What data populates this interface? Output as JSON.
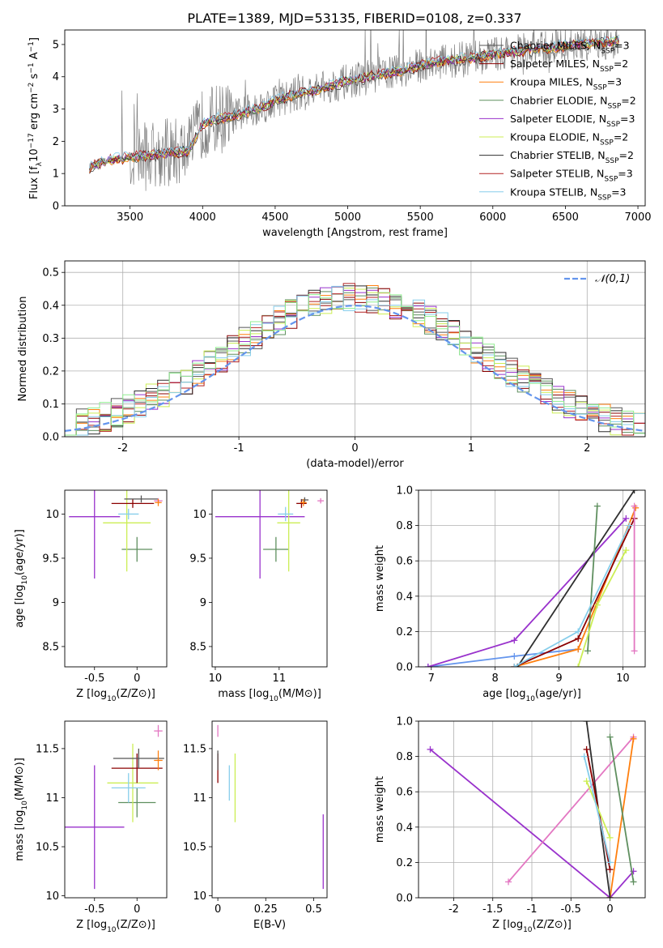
{
  "figure_title": "PLATE=1389, MJD=53135, FIBERID=0108, z=0.337",
  "legend_colors": [
    "#555555",
    "#8b0000",
    "#ff7f0e",
    "#5f8f5f",
    "#9932cc",
    "#ccee55",
    "#2f2f2f",
    "#b22222",
    "#87ceeb"
  ],
  "chart_data": [
    {
      "id": "spectrum",
      "type": "line",
      "xlabel": "wavelength [Angstrom, rest frame]",
      "ylabel": "Flux [f_λ 10^-17 erg cm^-2 s^-1 A^-1]",
      "xlim": [
        3050,
        7050
      ],
      "ylim": [
        0,
        5.45
      ],
      "xticks": [
        3500,
        4000,
        4500,
        5000,
        5500,
        6000,
        6500,
        7000
      ],
      "yticks": [
        0,
        1,
        2,
        3,
        4,
        5
      ],
      "x_range": [
        3220,
        6870
      ],
      "model_envelope": {
        "x": [
          3220,
          3300,
          3400,
          3500,
          3600,
          3700,
          3800,
          3900,
          4000,
          4100,
          4200,
          4300,
          4400,
          4500,
          4600,
          4700,
          4800,
          4900,
          5000,
          5100,
          5200,
          5300,
          5400,
          5500,
          5600,
          5700,
          5800,
          5900,
          6000,
          6100,
          6200,
          6300,
          6400,
          6500,
          6600,
          6700,
          6870
        ],
        "y": [
          1.2,
          1.35,
          1.45,
          1.5,
          1.55,
          1.6,
          1.65,
          1.7,
          2.55,
          2.7,
          2.75,
          2.9,
          3.05,
          3.25,
          3.4,
          3.5,
          3.6,
          3.75,
          3.85,
          3.95,
          4.05,
          4.15,
          4.2,
          4.35,
          4.45,
          4.5,
          4.55,
          4.6,
          4.7,
          4.75,
          4.8,
          4.85,
          4.9,
          4.95,
          5.0,
          5.05,
          5.1
        ]
      },
      "series": [
        {
          "name": "Chabrier MILES, N_SSP=3",
          "color": "#555555"
        },
        {
          "name": "Salpeter MILES, N_SSP=2",
          "color": "#8b0000"
        },
        {
          "name": "Kroupa MILES, N_SSP=3",
          "color": "#ff7f0e"
        },
        {
          "name": "Chabrier ELODIE, N_SSP=2",
          "color": "#5f8f5f"
        },
        {
          "name": "Salpeter ELODIE, N_SSP=3",
          "color": "#9932cc"
        },
        {
          "name": "Kroupa ELODIE, N_SSP=2",
          "color": "#ccee55"
        },
        {
          "name": "Chabrier STELIB, N_SSP=2",
          "color": "#2f2f2f"
        },
        {
          "name": "Salpeter STELIB, N_SSP=3",
          "color": "#b22222"
        },
        {
          "name": "Kroupa STELIB, N_SSP=3",
          "color": "#87ceeb"
        }
      ],
      "data_color": "#808080"
    },
    {
      "id": "residuals",
      "type": "line",
      "xlabel": "(data-model)/error",
      "ylabel": "Normed distribution",
      "xlim": [
        -2.5,
        2.5
      ],
      "ylim": [
        0,
        0.535
      ],
      "xticks": [
        -2,
        -1,
        0,
        1,
        2
      ],
      "yticks": [
        0.0,
        0.1,
        0.2,
        0.3,
        0.4,
        0.5
      ],
      "grid": true,
      "legend": "top-right",
      "gaussian": {
        "name": "𝒩(0,1)",
        "color": "#6495ed",
        "mean": 0,
        "sigma": 1
      },
      "hist_bins": {
        "start": -2.5,
        "width": 0.1,
        "count": 50
      },
      "hist_colors": [
        "#555555",
        "#8b0000",
        "#ff7f0e",
        "#5f8f5f",
        "#9932cc",
        "#ccee55",
        "#2f2f2f",
        "#b22222",
        "#87ceeb",
        "#90ee90"
      ]
    },
    {
      "id": "age_vs_Z",
      "type": "scatter",
      "xlabel": "Z [log10(Z/Z⊙)]",
      "ylabel": "age  [log10(age/yr)]",
      "xlim": [
        -0.85,
        0.35
      ],
      "ylim": [
        8.27,
        10.27
      ],
      "xticks": [
        -0.5,
        0.0
      ],
      "yticks": [
        8.5,
        9.0,
        9.5,
        10.0
      ],
      "points": [
        {
          "x": -0.5,
          "y": 9.97,
          "xerr": 0.3,
          "yerr": 0.7,
          "color": "#9932cc"
        },
        {
          "x": 0.0,
          "y": 9.6,
          "xerr": 0.18,
          "yerr": 0.14,
          "color": "#5f8f5f"
        },
        {
          "x": -0.12,
          "y": 9.9,
          "xerr": 0.28,
          "yerr": 0.55,
          "color": "#ccee55"
        },
        {
          "x": -0.05,
          "y": 10.12,
          "xerr": 0.25,
          "yerr": 0.05,
          "color": "#8b0000"
        },
        {
          "x": 0.05,
          "y": 10.17,
          "xerr": 0.2,
          "yerr": 0.04,
          "color": "#555555"
        },
        {
          "x": -0.1,
          "y": 10.0,
          "xerr": 0.12,
          "yerr": 0.06,
          "color": "#87ceeb"
        },
        {
          "x": 0.25,
          "y": 10.15,
          "xerr": 0.05,
          "yerr": 0.03,
          "color": "#e377c2"
        },
        {
          "x": 0.25,
          "y": 10.13,
          "xerr": 0.04,
          "yerr": 0.04,
          "color": "#ff7f0e"
        }
      ]
    },
    {
      "id": "age_vs_mass",
      "type": "scatter",
      "xlabel": "mass [log10(M/M⊙)]",
      "ylabel": "",
      "xlim": [
        9.95,
        11.75
      ],
      "ylim": [
        8.27,
        10.27
      ],
      "xticks": [
        10,
        11
      ],
      "yticks": [
        8.5,
        9.0,
        9.5,
        10.0
      ],
      "points": [
        {
          "x": 10.7,
          "y": 9.97,
          "xerr": 0.7,
          "yerr": 0.7,
          "color": "#9932cc"
        },
        {
          "x": 10.95,
          "y": 9.6,
          "xerr": 0.2,
          "yerr": 0.14,
          "color": "#5f8f5f"
        },
        {
          "x": 11.15,
          "y": 9.9,
          "xerr": 0.18,
          "yerr": 0.55,
          "color": "#ccee55"
        },
        {
          "x": 11.1,
          "y": 10.0,
          "xerr": 0.12,
          "yerr": 0.08,
          "color": "#87ceeb"
        },
        {
          "x": 11.35,
          "y": 10.12,
          "xerr": 0.08,
          "yerr": 0.05,
          "color": "#8b0000"
        },
        {
          "x": 11.4,
          "y": 10.16,
          "xerr": 0.06,
          "yerr": 0.03,
          "color": "#555555"
        },
        {
          "x": 11.38,
          "y": 10.13,
          "xerr": 0.05,
          "yerr": 0.04,
          "color": "#ff7f0e"
        },
        {
          "x": 11.65,
          "y": 10.15,
          "xerr": 0.05,
          "yerr": 0.03,
          "color": "#e377c2"
        }
      ]
    },
    {
      "id": "massweight_vs_age",
      "type": "line",
      "xlabel": "age  [log10(age/yr)]",
      "ylabel": "mass weight",
      "xlim": [
        6.8,
        10.35
      ],
      "ylim": [
        0,
        1.0
      ],
      "xticks": [
        7,
        8,
        9,
        10
      ],
      "yticks": [
        0.0,
        0.2,
        0.4,
        0.6,
        0.8,
        1.0
      ],
      "grid": true,
      "series": [
        {
          "color": "#6495ed",
          "x": [
            6.95,
            8.3,
            9.3
          ],
          "y": [
            0.0,
            0.06,
            0.1
          ]
        },
        {
          "color": "#9932cc",
          "x": [
            6.95,
            8.3,
            10.05
          ],
          "y": [
            0.0,
            0.15,
            0.84
          ]
        },
        {
          "color": "#ff7f0e",
          "x": [
            8.3,
            9.3,
            10.2
          ],
          "y": [
            0.0,
            0.1,
            0.9
          ]
        },
        {
          "color": "#8b0000",
          "x": [
            8.3,
            9.3,
            10.18
          ],
          "y": [
            0.0,
            0.16,
            0.84
          ]
        },
        {
          "color": "#2f2f2f",
          "x": [
            8.35,
            10.18
          ],
          "y": [
            0.0,
            1.0
          ]
        },
        {
          "color": "#5f8f5f",
          "x": [
            9.45,
            9.6
          ],
          "y": [
            0.09,
            0.91
          ]
        },
        {
          "color": "#ccee55",
          "x": [
            9.3,
            9.6,
            10.05
          ],
          "y": [
            0.0,
            0.35,
            0.66
          ]
        },
        {
          "color": "#87ceeb",
          "x": [
            8.3,
            9.3,
            10.1
          ],
          "y": [
            0.0,
            0.2,
            0.8
          ]
        },
        {
          "color": "#e377c2",
          "x": [
            10.18,
            10.18
          ],
          "y": [
            0.09,
            0.91
          ]
        }
      ]
    },
    {
      "id": "mass_vs_Z",
      "type": "scatter",
      "xlabel": "Z [log10(Z/Z⊙)]",
      "ylabel": "mass [log10(M/M⊙)]",
      "xlim": [
        -0.85,
        0.35
      ],
      "ylim": [
        9.98,
        11.78
      ],
      "xticks": [
        -0.5,
        0.0
      ],
      "yticks": [
        10.0,
        10.5,
        11.0,
        11.5
      ],
      "points": [
        {
          "x": -0.5,
          "y": 10.7,
          "xerr": 0.35,
          "yerr": 0.63,
          "color": "#9932cc"
        },
        {
          "x": 0.0,
          "y": 10.95,
          "xerr": 0.22,
          "yerr": 0.15,
          "color": "#5f8f5f"
        },
        {
          "x": -0.05,
          "y": 11.15,
          "xerr": 0.3,
          "yerr": 0.4,
          "color": "#ccee55"
        },
        {
          "x": -0.1,
          "y": 11.1,
          "xerr": 0.2,
          "yerr": 0.15,
          "color": "#87ceeb"
        },
        {
          "x": 0.0,
          "y": 11.3,
          "xerr": 0.3,
          "yerr": 0.15,
          "color": "#8b0000"
        },
        {
          "x": 0.02,
          "y": 11.4,
          "xerr": 0.3,
          "yerr": 0.1,
          "color": "#555555"
        },
        {
          "x": 0.25,
          "y": 11.38,
          "xerr": 0.05,
          "yerr": 0.1,
          "color": "#ff7f0e"
        },
        {
          "x": 0.25,
          "y": 11.68,
          "xerr": 0.05,
          "yerr": 0.06,
          "color": "#e377c2"
        }
      ]
    },
    {
      "id": "mass_vs_ebv",
      "type": "scatter",
      "xlabel": "E(B-V)",
      "ylabel": "",
      "xlim": [
        -0.03,
        0.57
      ],
      "ylim": [
        9.98,
        11.78
      ],
      "xticks": [
        0.0,
        0.25,
        0.5
      ],
      "yticks": [
        10.0,
        10.5,
        11.0,
        11.5
      ],
      "points": [
        {
          "x": 0.0,
          "y": 11.3,
          "xerr": 0,
          "yerr": 0.15,
          "color": "#8b0000"
        },
        {
          "x": 0.0,
          "y": 11.38,
          "xerr": 0,
          "yerr": 0.1,
          "color": "#555555"
        },
        {
          "x": 0.0,
          "y": 11.68,
          "xerr": 0,
          "yerr": 0.06,
          "color": "#e377c2"
        },
        {
          "x": 0.06,
          "y": 11.15,
          "xerr": 0,
          "yerr": 0.18,
          "color": "#87ceeb"
        },
        {
          "x": 0.09,
          "y": 11.1,
          "xerr": 0,
          "yerr": 0.35,
          "color": "#ccee55"
        },
        {
          "x": 0.55,
          "y": 10.45,
          "xerr": 0,
          "yerr": 0.38,
          "color": "#9932cc"
        }
      ]
    },
    {
      "id": "massweight_vs_Z",
      "type": "line",
      "xlabel": "Z [log10(Z/Z⊙)]",
      "ylabel": "mass weight",
      "xlim": [
        -2.45,
        0.45
      ],
      "ylim": [
        0,
        1.0
      ],
      "xticks": [
        -2.0,
        -1.5,
        -1.0,
        -0.5,
        0.0
      ],
      "yticks": [
        0.0,
        0.2,
        0.4,
        0.6,
        0.8,
        1.0
      ],
      "grid": true,
      "series": [
        {
          "color": "#9932cc",
          "x": [
            -2.3,
            0.0,
            0.3
          ],
          "y": [
            0.84,
            0.0,
            0.15
          ]
        },
        {
          "color": "#e377c2",
          "x": [
            -1.3,
            0.3
          ],
          "y": [
            0.09,
            0.91
          ]
        },
        {
          "color": "#ff7f0e",
          "x": [
            0.0,
            0.3
          ],
          "y": [
            0.0,
            0.9
          ]
        },
        {
          "color": "#5f8f5f",
          "x": [
            0.0,
            0.3
          ],
          "y": [
            0.91,
            0.09
          ]
        },
        {
          "color": "#2f2f2f",
          "x": [
            -0.3,
            0.0
          ],
          "y": [
            1.0,
            0.0
          ]
        },
        {
          "color": "#8b0000",
          "x": [
            -0.3,
            0.0
          ],
          "y": [
            0.84,
            0.16
          ]
        },
        {
          "color": "#ccee55",
          "x": [
            -0.3,
            0.0
          ],
          "y": [
            0.66,
            0.34
          ]
        },
        {
          "color": "#87ceeb",
          "x": [
            -0.33,
            0.0
          ],
          "y": [
            0.8,
            0.2
          ]
        }
      ]
    }
  ]
}
